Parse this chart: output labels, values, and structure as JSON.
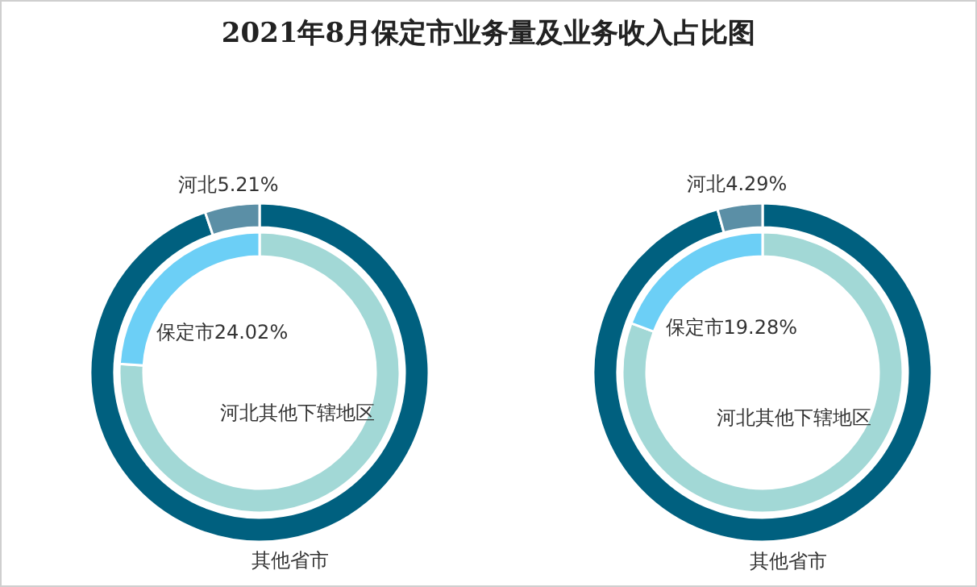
{
  "chart_data": [
    {
      "type": "donut",
      "title": "2021年8月保定市业务量及业务收入占比图",
      "categories": [
        "其他省市",
        "河北"
      ],
      "values": [
        94.79,
        5.21
      ],
      "colors": [
        "#00607f",
        "#5b8fa6"
      ],
      "value_labels": [
        null,
        "5.21%"
      ]
    },
    {
      "type": "donut",
      "categories": [
        "河北其他下辖地区",
        "保定市"
      ],
      "values": [
        75.98,
        24.02
      ],
      "colors": [
        "#a2d8d6",
        "#6ccff6"
      ],
      "value_labels": [
        null,
        "24.02%"
      ]
    },
    {
      "type": "donut",
      "categories": [
        "其他省市",
        "河北"
      ],
      "values": [
        95.71,
        4.29
      ],
      "colors": [
        "#00607f",
        "#5b8fa6"
      ],
      "value_labels": [
        null,
        "4.29%"
      ]
    },
    {
      "type": "donut",
      "categories": [
        "河北其他下辖地区",
        "保定市"
      ],
      "values": [
        80.72,
        19.28
      ],
      "colors": [
        "#a2d8d6",
        "#6ccff6"
      ],
      "value_labels": [
        null,
        "19.28%"
      ]
    }
  ]
}
